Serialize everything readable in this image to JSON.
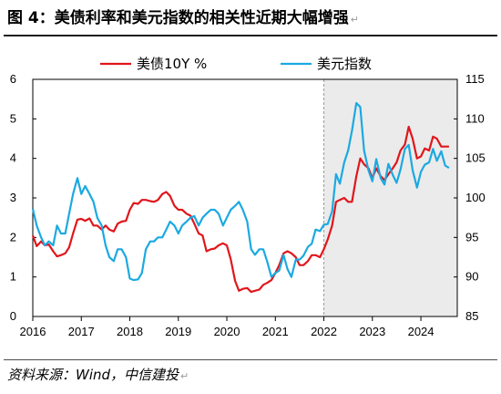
{
  "figure": {
    "title": "图 4：美债利率和美元指数的相关性近期大幅增强",
    "source": "资料来源：Wind，中信建投"
  },
  "colors": {
    "yield_line": "#e0161b",
    "dxy_line": "#1ca9e1",
    "shade": "#ebebeb",
    "axis": "#000000"
  },
  "chart_data": {
    "type": "line",
    "title": "",
    "xlabel": "",
    "ylabel": "",
    "x_range": [
      2016.0,
      2024.75
    ],
    "x_ticks": [
      "2016",
      "2017",
      "2018",
      "2019",
      "2020",
      "2021",
      "2022",
      "2023",
      "2024"
    ],
    "y_left": {
      "range": [
        0,
        6
      ],
      "ticks": [
        "0",
        "1",
        "2",
        "3",
        "4",
        "5",
        "6"
      ]
    },
    "y_right": {
      "range": [
        85,
        115
      ],
      "ticks": [
        "85",
        "90",
        "95",
        "100",
        "105",
        "110",
        "115"
      ]
    },
    "shaded_x_range": [
      2022.0,
      2024.75
    ],
    "legend_position": "top",
    "grid": false,
    "series": [
      {
        "name": "美债10Y %",
        "axis": "left",
        "points": [
          [
            2016.0,
            2.05
          ],
          [
            2016.08,
            1.78
          ],
          [
            2016.17,
            1.9
          ],
          [
            2016.25,
            1.8
          ],
          [
            2016.33,
            1.82
          ],
          [
            2016.42,
            1.65
          ],
          [
            2016.5,
            1.52
          ],
          [
            2016.58,
            1.55
          ],
          [
            2016.67,
            1.6
          ],
          [
            2016.75,
            1.75
          ],
          [
            2016.83,
            2.1
          ],
          [
            2016.92,
            2.45
          ],
          [
            2017.0,
            2.47
          ],
          [
            2017.08,
            2.42
          ],
          [
            2017.17,
            2.48
          ],
          [
            2017.25,
            2.3
          ],
          [
            2017.33,
            2.3
          ],
          [
            2017.42,
            2.2
          ],
          [
            2017.5,
            2.3
          ],
          [
            2017.58,
            2.2
          ],
          [
            2017.67,
            2.15
          ],
          [
            2017.75,
            2.35
          ],
          [
            2017.83,
            2.4
          ],
          [
            2017.92,
            2.42
          ],
          [
            2018.0,
            2.7
          ],
          [
            2018.08,
            2.87
          ],
          [
            2018.17,
            2.85
          ],
          [
            2018.25,
            2.95
          ],
          [
            2018.33,
            2.95
          ],
          [
            2018.42,
            2.92
          ],
          [
            2018.5,
            2.9
          ],
          [
            2018.58,
            2.95
          ],
          [
            2018.67,
            3.1
          ],
          [
            2018.75,
            3.15
          ],
          [
            2018.83,
            3.05
          ],
          [
            2018.92,
            2.8
          ],
          [
            2019.0,
            2.7
          ],
          [
            2019.08,
            2.7
          ],
          [
            2019.17,
            2.6
          ],
          [
            2019.25,
            2.55
          ],
          [
            2019.33,
            2.35
          ],
          [
            2019.42,
            2.1
          ],
          [
            2019.5,
            2.05
          ],
          [
            2019.58,
            1.65
          ],
          [
            2019.67,
            1.7
          ],
          [
            2019.75,
            1.72
          ],
          [
            2019.83,
            1.8
          ],
          [
            2019.92,
            1.85
          ],
          [
            2020.0,
            1.8
          ],
          [
            2020.08,
            1.45
          ],
          [
            2020.17,
            0.9
          ],
          [
            2020.25,
            0.65
          ],
          [
            2020.33,
            0.7
          ],
          [
            2020.42,
            0.72
          ],
          [
            2020.5,
            0.62
          ],
          [
            2020.58,
            0.65
          ],
          [
            2020.67,
            0.68
          ],
          [
            2020.75,
            0.8
          ],
          [
            2020.83,
            0.85
          ],
          [
            2020.92,
            0.92
          ],
          [
            2021.0,
            1.1
          ],
          [
            2021.08,
            1.3
          ],
          [
            2021.17,
            1.6
          ],
          [
            2021.25,
            1.65
          ],
          [
            2021.33,
            1.6
          ],
          [
            2021.42,
            1.5
          ],
          [
            2021.5,
            1.3
          ],
          [
            2021.58,
            1.3
          ],
          [
            2021.67,
            1.4
          ],
          [
            2021.75,
            1.55
          ],
          [
            2021.83,
            1.55
          ],
          [
            2021.92,
            1.5
          ],
          [
            2022.0,
            1.7
          ],
          [
            2022.08,
            1.95
          ],
          [
            2022.17,
            2.3
          ],
          [
            2022.25,
            2.9
          ],
          [
            2022.33,
            2.95
          ],
          [
            2022.42,
            3.0
          ],
          [
            2022.5,
            2.9
          ],
          [
            2022.58,
            2.9
          ],
          [
            2022.67,
            3.55
          ],
          [
            2022.75,
            4.0
          ],
          [
            2022.83,
            3.85
          ],
          [
            2022.92,
            3.75
          ],
          [
            2023.0,
            3.5
          ],
          [
            2023.08,
            3.75
          ],
          [
            2023.17,
            3.55
          ],
          [
            2023.25,
            3.45
          ],
          [
            2023.33,
            3.6
          ],
          [
            2023.42,
            3.75
          ],
          [
            2023.5,
            3.9
          ],
          [
            2023.58,
            4.2
          ],
          [
            2023.67,
            4.35
          ],
          [
            2023.75,
            4.8
          ],
          [
            2023.83,
            4.5
          ],
          [
            2023.92,
            4.0
          ],
          [
            2024.0,
            4.05
          ],
          [
            2024.08,
            4.25
          ],
          [
            2024.17,
            4.2
          ],
          [
            2024.25,
            4.55
          ],
          [
            2024.33,
            4.5
          ],
          [
            2024.42,
            4.3
          ],
          [
            2024.5,
            4.3
          ],
          [
            2024.58,
            4.3
          ]
        ]
      },
      {
        "name": "美元指数",
        "axis": "right",
        "points": [
          [
            2016.0,
            98.6
          ],
          [
            2016.08,
            96.5
          ],
          [
            2016.17,
            95.0
          ],
          [
            2016.25,
            94.0
          ],
          [
            2016.33,
            94.5
          ],
          [
            2016.42,
            94.0
          ],
          [
            2016.5,
            96.5
          ],
          [
            2016.58,
            95.5
          ],
          [
            2016.67,
            95.5
          ],
          [
            2016.75,
            98.0
          ],
          [
            2016.83,
            100.5
          ],
          [
            2016.92,
            102.5
          ],
          [
            2017.0,
            100.5
          ],
          [
            2017.08,
            101.5
          ],
          [
            2017.17,
            100.5
          ],
          [
            2017.25,
            99.5
          ],
          [
            2017.33,
            97.5
          ],
          [
            2017.42,
            96.5
          ],
          [
            2017.5,
            94.0
          ],
          [
            2017.58,
            92.5
          ],
          [
            2017.67,
            92.0
          ],
          [
            2017.75,
            93.5
          ],
          [
            2017.83,
            93.5
          ],
          [
            2017.92,
            92.5
          ],
          [
            2018.0,
            89.8
          ],
          [
            2018.08,
            89.6
          ],
          [
            2018.17,
            89.7
          ],
          [
            2018.25,
            90.5
          ],
          [
            2018.33,
            93.5
          ],
          [
            2018.42,
            94.5
          ],
          [
            2018.5,
            94.5
          ],
          [
            2018.58,
            95.0
          ],
          [
            2018.67,
            95.0
          ],
          [
            2018.75,
            96.0
          ],
          [
            2018.83,
            97.0
          ],
          [
            2018.92,
            96.5
          ],
          [
            2019.0,
            95.5
          ],
          [
            2019.08,
            96.5
          ],
          [
            2019.17,
            97.0
          ],
          [
            2019.25,
            97.5
          ],
          [
            2019.33,
            97.7
          ],
          [
            2019.42,
            96.5
          ],
          [
            2019.5,
            97.5
          ],
          [
            2019.58,
            98.0
          ],
          [
            2019.67,
            98.5
          ],
          [
            2019.75,
            98.5
          ],
          [
            2019.83,
            98.0
          ],
          [
            2019.92,
            96.5
          ],
          [
            2020.0,
            97.5
          ],
          [
            2020.08,
            98.5
          ],
          [
            2020.17,
            99.0
          ],
          [
            2020.25,
            99.5
          ],
          [
            2020.33,
            98.5
          ],
          [
            2020.42,
            97.0
          ],
          [
            2020.5,
            93.5
          ],
          [
            2020.58,
            92.8
          ],
          [
            2020.67,
            93.5
          ],
          [
            2020.75,
            93.5
          ],
          [
            2020.83,
            92.0
          ],
          [
            2020.92,
            90.0
          ],
          [
            2021.0,
            90.5
          ],
          [
            2021.08,
            90.8
          ],
          [
            2021.17,
            92.8
          ],
          [
            2021.25,
            91.0
          ],
          [
            2021.33,
            90.0
          ],
          [
            2021.42,
            92.2
          ],
          [
            2021.5,
            92.2
          ],
          [
            2021.58,
            92.7
          ],
          [
            2021.67,
            93.8
          ],
          [
            2021.75,
            94.2
          ],
          [
            2021.83,
            96.0
          ],
          [
            2021.92,
            95.8
          ],
          [
            2022.0,
            96.6
          ],
          [
            2022.08,
            96.7
          ],
          [
            2022.17,
            98.3
          ],
          [
            2022.25,
            103.0
          ],
          [
            2022.33,
            101.8
          ],
          [
            2022.42,
            104.5
          ],
          [
            2022.5,
            106.0
          ],
          [
            2022.58,
            108.5
          ],
          [
            2022.67,
            112.0
          ],
          [
            2022.75,
            111.5
          ],
          [
            2022.83,
            106.0
          ],
          [
            2022.92,
            103.5
          ],
          [
            2023.0,
            102.1
          ],
          [
            2023.08,
            104.9
          ],
          [
            2023.17,
            102.5
          ],
          [
            2023.25,
            101.7
          ],
          [
            2023.33,
            104.3
          ],
          [
            2023.42,
            102.9
          ],
          [
            2023.5,
            101.9
          ],
          [
            2023.58,
            103.6
          ],
          [
            2023.67,
            106.2
          ],
          [
            2023.75,
            106.7
          ],
          [
            2023.83,
            103.5
          ],
          [
            2023.92,
            101.3
          ],
          [
            2024.0,
            103.3
          ],
          [
            2024.08,
            104.2
          ],
          [
            2024.17,
            104.5
          ],
          [
            2024.25,
            106.2
          ],
          [
            2024.33,
            104.7
          ],
          [
            2024.42,
            105.9
          ],
          [
            2024.5,
            104.1
          ],
          [
            2024.58,
            103.8
          ]
        ]
      }
    ]
  }
}
